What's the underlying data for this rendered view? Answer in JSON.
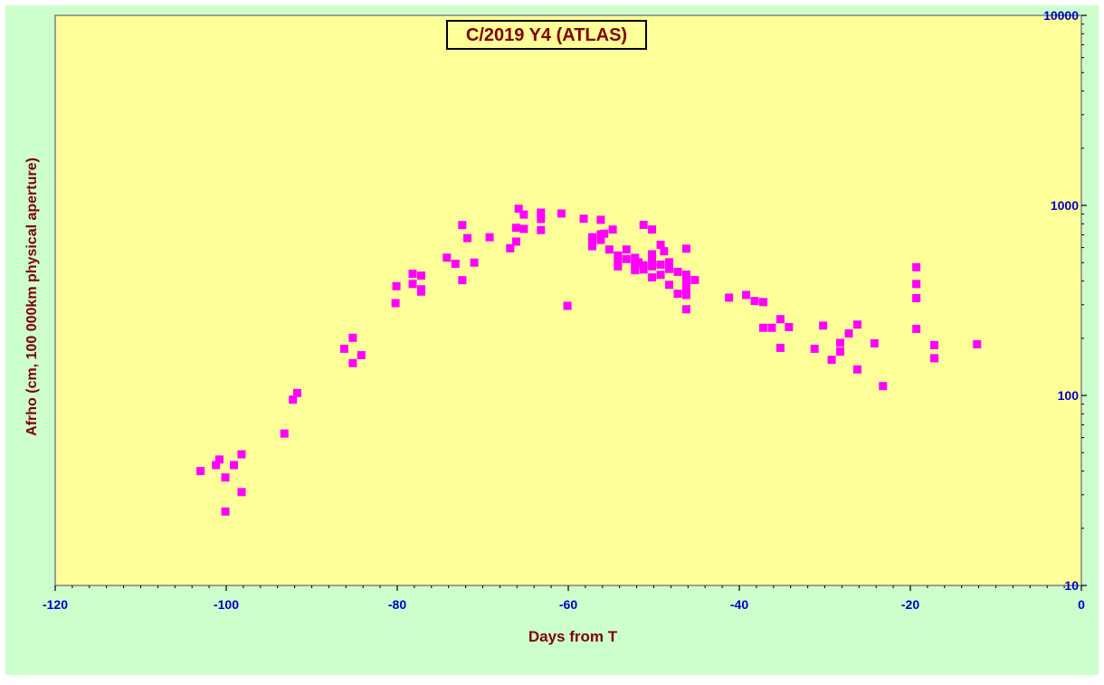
{
  "chart_data": {
    "type": "scatter",
    "title": "C/2019 Y4 (ATLAS)",
    "xlabel": "Days from T",
    "ylabel": "Afrho (cm, 100 000km physical aperture)",
    "xlim": [
      -120,
      0
    ],
    "ylim": [
      10,
      10000
    ],
    "yscale": "log",
    "x_ticks": [
      "-120",
      "-100",
      "-80",
      "-60",
      "-40",
      "-20",
      "0"
    ],
    "x_tick_values": [
      -120,
      -100,
      -80,
      -60,
      -40,
      -20,
      0
    ],
    "y_ticks": [
      "10",
      "100",
      "1000",
      "10000"
    ],
    "y_tick_values": [
      10,
      100,
      1000,
      10000
    ],
    "y_axis_side": "right",
    "grid": false,
    "legend": "none",
    "colors": {
      "background": "#ccffcc",
      "plot_area": "#ffff99",
      "marker": "#ff00ff",
      "title_text": "#800000",
      "axis_label": "#800000",
      "tick_label": "#0000cc"
    },
    "series": [
      {
        "marker": "square",
        "points": [
          [
            -103,
            40
          ],
          [
            -101.2,
            43
          ],
          [
            -100.8,
            46
          ],
          [
            -100.1,
            37
          ],
          [
            -100.1,
            24.5
          ],
          [
            -99.1,
            43
          ],
          [
            -98.2,
            49
          ],
          [
            -98.2,
            31
          ],
          [
            -93.2,
            63
          ],
          [
            -92.2,
            95
          ],
          [
            -91.7,
            103
          ],
          [
            -86.2,
            176
          ],
          [
            -85.2,
            201
          ],
          [
            -85.2,
            148
          ],
          [
            -84.2,
            163
          ],
          [
            -80.2,
            306
          ],
          [
            -80.1,
            376
          ],
          [
            -78.2,
            437
          ],
          [
            -78.2,
            386
          ],
          [
            -77.2,
            427
          ],
          [
            -77.2,
            362
          ],
          [
            -77.2,
            352
          ],
          [
            -74.2,
            531
          ],
          [
            -73.2,
            493
          ],
          [
            -72.4,
            788
          ],
          [
            -72.4,
            404
          ],
          [
            -71.8,
            673
          ],
          [
            -71.0,
            500
          ],
          [
            -69.2,
            680
          ],
          [
            -66.8,
            595
          ],
          [
            -66.1,
            645
          ],
          [
            -66.1,
            762
          ],
          [
            -65.8,
            960
          ],
          [
            -65.2,
            895
          ],
          [
            -65.2,
            752
          ],
          [
            -63.2,
            916
          ],
          [
            -63.2,
            848
          ],
          [
            -63.2,
            742
          ],
          [
            -60.8,
            907
          ],
          [
            -60.1,
            296
          ],
          [
            -58.2,
            851
          ],
          [
            -57.2,
            680
          ],
          [
            -57.2,
            640
          ],
          [
            -57.2,
            610
          ],
          [
            -56.2,
            840
          ],
          [
            -56.2,
            705
          ],
          [
            -56.2,
            658
          ],
          [
            -55.8,
            710
          ],
          [
            -55.2,
            586
          ],
          [
            -54.8,
            746
          ],
          [
            -54.2,
            545
          ],
          [
            -54.2,
            505
          ],
          [
            -54.2,
            478
          ],
          [
            -53.2,
            586
          ],
          [
            -53.2,
            522
          ],
          [
            -52.2,
            530
          ],
          [
            -52.2,
            488
          ],
          [
            -52.2,
            456
          ],
          [
            -51.8,
            502
          ],
          [
            -51.2,
            790
          ],
          [
            -51.2,
            484
          ],
          [
            -51.2,
            460
          ],
          [
            -50.2,
            747
          ],
          [
            -50.2,
            553
          ],
          [
            -50.2,
            522
          ],
          [
            -50.2,
            478
          ],
          [
            -50.2,
            418
          ],
          [
            -49.2,
            620
          ],
          [
            -49.2,
            488
          ],
          [
            -49.2,
            431
          ],
          [
            -48.8,
            574
          ],
          [
            -48.2,
            502
          ],
          [
            -48.2,
            463
          ],
          [
            -48.2,
            382
          ],
          [
            -47.2,
            447
          ],
          [
            -47.2,
            343
          ],
          [
            -46.2,
            592
          ],
          [
            -46.2,
            432
          ],
          [
            -46.2,
            409
          ],
          [
            -46.2,
            379
          ],
          [
            -46.2,
            355
          ],
          [
            -46.2,
            338
          ],
          [
            -46.2,
            284
          ],
          [
            -45.2,
            405
          ],
          [
            -41.2,
            327
          ],
          [
            -39.2,
            338
          ],
          [
            -38.2,
            314
          ],
          [
            -37.2,
            310
          ],
          [
            -37.2,
            227
          ],
          [
            -36.2,
            227
          ],
          [
            -35.2,
            252
          ],
          [
            -35.2,
            178
          ],
          [
            -34.2,
            229
          ],
          [
            -31.2,
            176
          ],
          [
            -30.2,
            233
          ],
          [
            -29.2,
            154
          ],
          [
            -28.2,
            189
          ],
          [
            -28.2,
            170
          ],
          [
            -27.2,
            212
          ],
          [
            -26.2,
            236
          ],
          [
            -26.2,
            137
          ],
          [
            -24.2,
            188
          ],
          [
            -23.2,
            112
          ],
          [
            -19.3,
            473
          ],
          [
            -19.3,
            386
          ],
          [
            -19.3,
            325
          ],
          [
            -19.3,
            224
          ],
          [
            -17.2,
            184
          ],
          [
            -17.2,
            157
          ],
          [
            -12.2,
            186
          ]
        ]
      }
    ]
  }
}
